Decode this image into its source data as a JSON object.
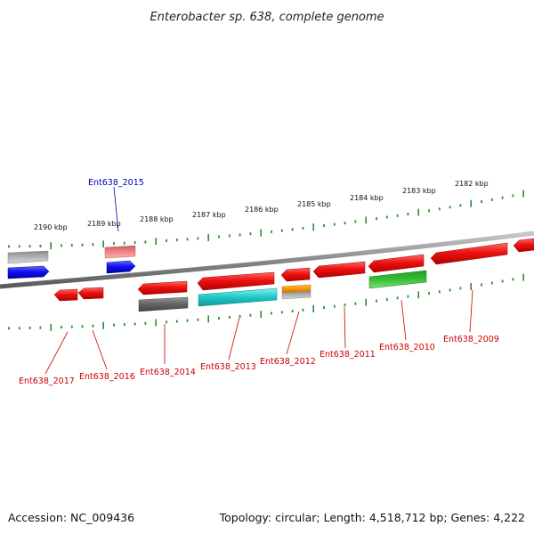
{
  "title": "Enterobacter sp. 638, complete genome",
  "footer": {
    "accession": "Accession: NC_009436",
    "summary": "Topology: circular; Length: 4,518,712 bp; Genes: 4,222"
  },
  "ruler_labels": [
    "2190 kbp",
    "2189 kbp",
    "2188 kbp",
    "2187 kbp",
    "2186 kbp",
    "2185 kbp",
    "2184 kbp",
    "2183 kbp",
    "2182 kbp"
  ],
  "gene_labels_below": [
    "Ent638_2017",
    "Ent638_2016",
    "Ent638_2014",
    "Ent638_2013",
    "Ent638_2012",
    "Ent638_2011",
    "Ent638_2010",
    "Ent638_2009"
  ],
  "gene_label_above": "Ent638_2015",
  "colors": {
    "tick": "#2e8b2e",
    "backbone": "#8a8a8a",
    "gene_red": "#ee1111",
    "gene_blue": "#1111ee",
    "gene_pink": "#f08080",
    "gene_gray": "#aaaaaa",
    "gene_darkgray": "#666666",
    "gene_cyan": "#22cccc",
    "gene_orange": "#ff9900",
    "gene_green": "#33bb33",
    "label_red": "#cc0000",
    "label_blue": "#0000aa"
  }
}
